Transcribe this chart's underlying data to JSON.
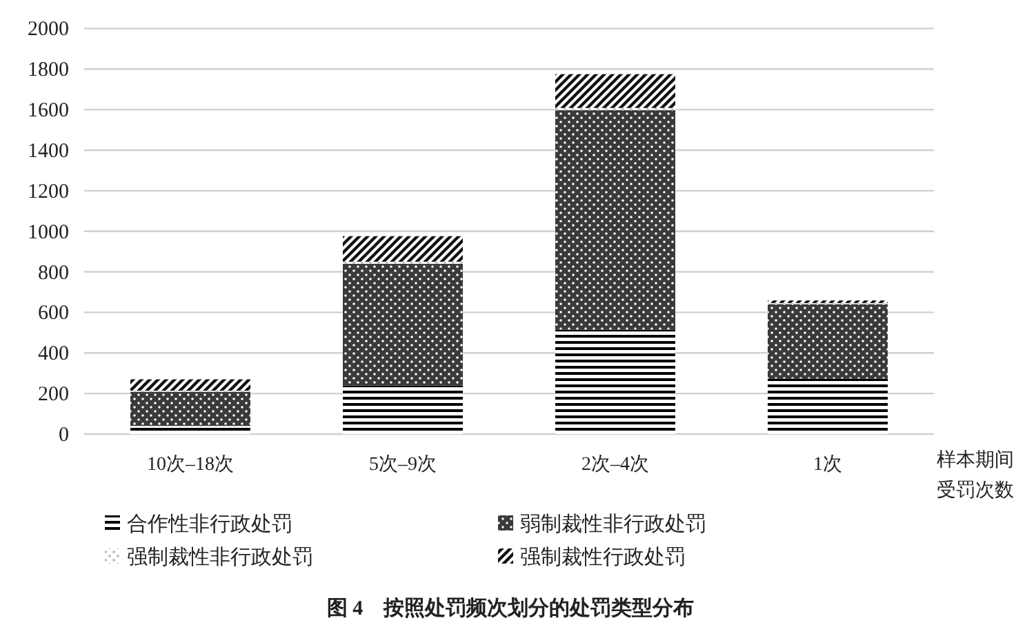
{
  "chart_data": {
    "type": "bar",
    "stacked": true,
    "title": "图 4　按照处罚频次划分的处罚类型分布",
    "xlabel": "样本期间受罚次数",
    "categories": [
      "10次–18次",
      "5次–9次",
      "2次–4次",
      "1次"
    ],
    "series": [
      {
        "name": "合作性非行政处罚",
        "color": "#000000",
        "values": [
          40,
          240,
          515,
          274
        ]
      },
      {
        "name": "弱制裁性非行政处罚",
        "color": "#3a3a3a",
        "values": [
          169,
          600,
          1083,
          367
        ]
      },
      {
        "name": "强制裁性非行政处罚",
        "color": "#bdbdbd",
        "values": [
          5,
          10,
          10,
          5
        ]
      },
      {
        "name": "强制裁性行政处罚",
        "color": "#111111",
        "values": [
          56,
          126,
          167,
          13
        ]
      }
    ],
    "ylim": [
      0,
      2000
    ],
    "yticks": [
      0,
      200,
      400,
      600,
      800,
      1000,
      1200,
      1400,
      1600,
      1800,
      2000
    ],
    "grid": "y",
    "legend": "bottom"
  }
}
